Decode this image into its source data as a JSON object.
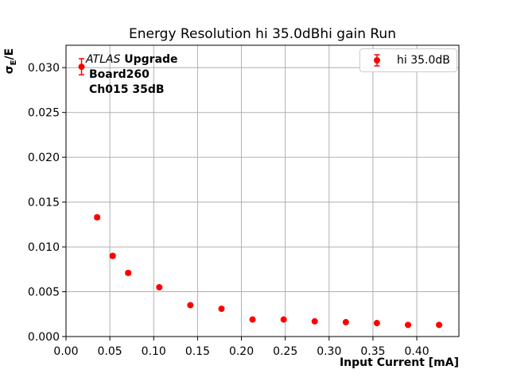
{
  "colors": {
    "marker": "#ff0000",
    "grid": "#b0b0b0",
    "axis": "#000000",
    "text": "#000000",
    "legend_border": "#cccccc",
    "background": "#ffffff"
  },
  "chart_data": {
    "type": "scatter",
    "title": "Energy Resolution hi 35.0dBhi gain Run",
    "xlabel": "Input Current [mA]",
    "ylabel": "σE/E",
    "ylabel_parts": {
      "base": "σ",
      "sub": "E",
      "rest": "/E"
    },
    "xlim": [
      0,
      0.448
    ],
    "ylim": [
      0,
      0.0325
    ],
    "grid": true,
    "annotation": {
      "line1_italic": "ATLAS",
      "line1_bold": " Upgrade",
      "line2": "Board260",
      "line3": "Ch015 35dB"
    },
    "legend": {
      "position": "upper right",
      "label": "hi 35.0dB"
    },
    "xticks": {
      "values": [
        0.0,
        0.05,
        0.1,
        0.15,
        0.2,
        0.25,
        0.3,
        0.35,
        0.4
      ],
      "labels": [
        "0.00",
        "0.05",
        "0.10",
        "0.15",
        "0.20",
        "0.25",
        "0.30",
        "0.35",
        "0.40"
      ]
    },
    "yticks": {
      "values": [
        0.0,
        0.005,
        0.01,
        0.015,
        0.02,
        0.025,
        0.03
      ],
      "labels": [
        "0.000",
        "0.005",
        "0.010",
        "0.015",
        "0.020",
        "0.025",
        "0.030"
      ]
    },
    "series": [
      {
        "name": "hi 35.0dB",
        "color": "#ff0000",
        "marker": "circle",
        "x": [
          0.0177,
          0.0355,
          0.0532,
          0.0709,
          0.1064,
          0.1418,
          0.1773,
          0.2127,
          0.2482,
          0.2836,
          0.3191,
          0.3545,
          0.39,
          0.4254
        ],
        "y": [
          0.0301,
          0.0133,
          0.009,
          0.0071,
          0.0055,
          0.0035,
          0.0031,
          0.0019,
          0.0019,
          0.0017,
          0.0016,
          0.0015,
          0.0013,
          0.0013
        ],
        "yerr": [
          0.0009,
          0.0002,
          0.0002,
          0.0002,
          0.0001,
          0.0001,
          0.0001,
          0.0001,
          0.0001,
          0.0001,
          0.0001,
          0.0001,
          0.0001,
          0.0001
        ]
      }
    ]
  }
}
